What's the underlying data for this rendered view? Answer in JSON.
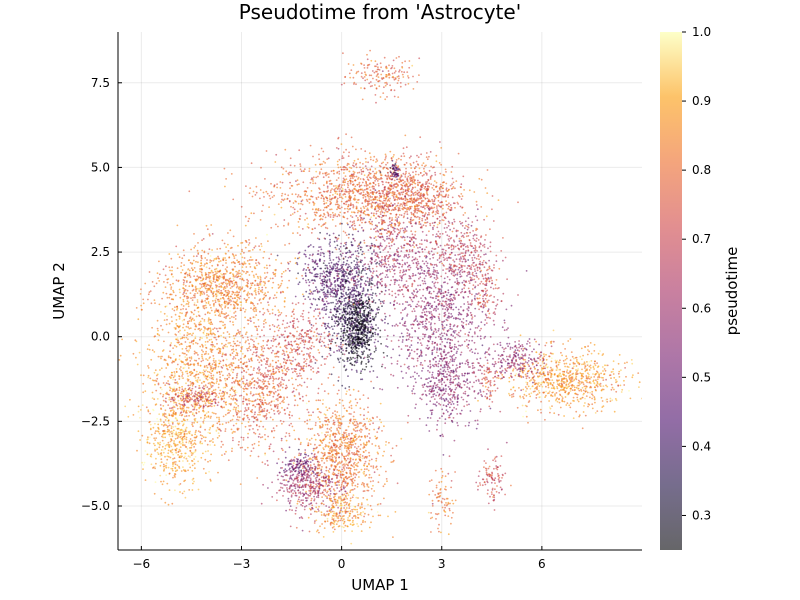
{
  "chart_data": {
    "type": "scatter",
    "title": "Pseudotime from 'Astrocyte'",
    "xlabel": "UMAP 1",
    "ylabel": "UMAP 2",
    "xlim": [
      -6.7,
      9.0
    ],
    "ylim": [
      -6.3,
      9.0
    ],
    "xticks": [
      -6,
      -3,
      0,
      3,
      6
    ],
    "xtick_labels": [
      "−6",
      "−3",
      "0",
      "3",
      "6"
    ],
    "yticks": [
      -5.0,
      -2.5,
      0.0,
      2.5,
      5.0,
      7.5
    ],
    "ytick_labels": [
      "−5.0",
      "−2.5",
      "0.0",
      "2.5",
      "5.0",
      "7.5"
    ],
    "grid": true,
    "legend": "none",
    "colorbar": {
      "label": "pseudotime",
      "range": [
        0.25,
        1.0
      ],
      "ticks": [
        0.3,
        0.4,
        0.5,
        0.6,
        0.7,
        0.8,
        0.9,
        1.0
      ],
      "tick_labels": [
        "0.3",
        "0.4",
        "0.5",
        "0.6",
        "0.7",
        "0.8",
        "0.9",
        "1.0"
      ],
      "colormap": "inferno",
      "alpha": 0.6
    },
    "clusters": [
      {
        "cx": 1.2,
        "cy": 7.7,
        "sx": 0.55,
        "sy": 0.3,
        "n": 160,
        "v": 0.78
      },
      {
        "cx": 0.7,
        "cy": 4.2,
        "sx": 1.4,
        "sy": 0.6,
        "n": 1300,
        "v": 0.79
      },
      {
        "cx": 2.1,
        "cy": 4.1,
        "sx": 0.7,
        "sy": 0.5,
        "n": 450,
        "v": 0.74
      },
      {
        "cx": 0.3,
        "cy": 1.0,
        "sx": 0.45,
        "sy": 0.9,
        "n": 700,
        "v": 0.38
      },
      {
        "cx": 0.5,
        "cy": 0.2,
        "sx": 0.25,
        "sy": 0.5,
        "n": 500,
        "v": 0.27
      },
      {
        "cx": -0.4,
        "cy": 1.8,
        "sx": 0.5,
        "sy": 0.5,
        "n": 350,
        "v": 0.45
      },
      {
        "cx": 2.9,
        "cy": 0.5,
        "sx": 0.8,
        "sy": 1.2,
        "n": 1000,
        "v": 0.57
      },
      {
        "cx": 3.2,
        "cy": -1.5,
        "sx": 0.45,
        "sy": 0.6,
        "n": 300,
        "v": 0.55
      },
      {
        "cx": 1.5,
        "cy": 2.3,
        "sx": 0.6,
        "sy": 0.7,
        "n": 400,
        "v": 0.62
      },
      {
        "cx": 3.6,
        "cy": 2.4,
        "sx": 0.5,
        "sy": 0.6,
        "n": 300,
        "v": 0.68
      },
      {
        "cx": -3.5,
        "cy": 1.5,
        "sx": 0.9,
        "sy": 0.6,
        "n": 900,
        "v": 0.83
      },
      {
        "cx": -4.2,
        "cy": -1.0,
        "sx": 0.8,
        "sy": 1.2,
        "n": 1100,
        "v": 0.86
      },
      {
        "cx": -5.0,
        "cy": -3.0,
        "sx": 0.45,
        "sy": 0.7,
        "n": 450,
        "v": 0.9
      },
      {
        "cx": -2.4,
        "cy": -1.5,
        "sx": 0.65,
        "sy": 0.9,
        "n": 650,
        "v": 0.76
      },
      {
        "cx": -1.2,
        "cy": -0.2,
        "sx": 0.5,
        "sy": 0.55,
        "n": 300,
        "v": 0.72
      },
      {
        "cx": 0.0,
        "cy": -3.5,
        "sx": 0.6,
        "sy": 0.8,
        "n": 900,
        "v": 0.82
      },
      {
        "cx": -1.0,
        "cy": -4.4,
        "sx": 0.5,
        "sy": 0.4,
        "n": 350,
        "v": 0.62
      },
      {
        "cx": -1.3,
        "cy": -3.9,
        "sx": 0.25,
        "sy": 0.25,
        "n": 130,
        "v": 0.5
      },
      {
        "cx": 0.0,
        "cy": -5.2,
        "sx": 0.45,
        "sy": 0.3,
        "n": 200,
        "v": 0.88
      },
      {
        "cx": 6.7,
        "cy": -1.3,
        "sx": 0.85,
        "sy": 0.45,
        "n": 750,
        "v": 0.87
      },
      {
        "cx": 5.3,
        "cy": -0.7,
        "sx": 0.4,
        "sy": 0.3,
        "n": 200,
        "v": 0.58
      },
      {
        "cx": 4.5,
        "cy": -4.3,
        "sx": 0.2,
        "sy": 0.35,
        "n": 100,
        "v": 0.7
      },
      {
        "cx": 3.0,
        "cy": -4.8,
        "sx": 0.2,
        "sy": 0.4,
        "n": 80,
        "v": 0.8
      },
      {
        "cx": 1.6,
        "cy": 4.9,
        "sx": 0.08,
        "sy": 0.15,
        "n": 50,
        "v": 0.45
      },
      {
        "cx": -4.4,
        "cy": -1.8,
        "sx": 0.4,
        "sy": 0.2,
        "n": 150,
        "v": 0.7
      },
      {
        "cx": 4.3,
        "cy": 1.3,
        "sx": 0.2,
        "sy": 0.4,
        "n": 100,
        "v": 0.72
      },
      {
        "cx": 4.4,
        "cy": -1.3,
        "sx": 0.15,
        "sy": 0.3,
        "n": 60,
        "v": 0.7
      }
    ]
  }
}
